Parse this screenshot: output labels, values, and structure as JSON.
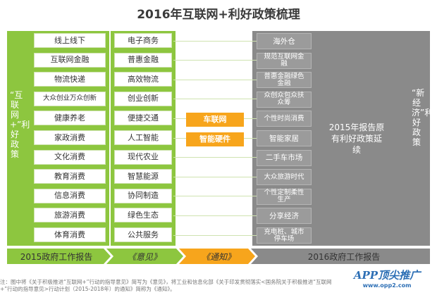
{
  "title": "2016年互联网+利好政策梳理",
  "left_label": "“互联网+”利好政策",
  "right_label": "“新经济”利好政策",
  "col1": [
    "线上线下",
    "互联网金融",
    "物流快递",
    "大众创业万众创新",
    "健康养老",
    "家政消费",
    "文化消费",
    "教育消费",
    "信息消费",
    "旅游消费",
    "体育消费"
  ],
  "col2": [
    "电子商务",
    "普惠金融",
    "高效物流",
    "创业创新",
    "便捷交通",
    "人工智能",
    "现代农业",
    "智慧能源",
    "协同制造",
    "绿色生态",
    "公共服务"
  ],
  "col3": [
    "车联网",
    "智能硬件"
  ],
  "col4": [
    "海外仓",
    "规范互联网金融",
    "普惠金融绿色金融",
    "众创众包众扶众筹",
    "个性时尚消费",
    "智能家居",
    "二手车市场",
    "大众旅游时代",
    "个性定制柔性生产",
    "分享经济",
    "充电桩、城市停车场"
  ],
  "col5_text": "2015年报告原有利好政策延续",
  "bottom": {
    "report_2015": "2015政府工作报告",
    "opinion": "《意见》",
    "notice": "《通知》",
    "report_2016": "2016政府工作报告"
  },
  "note": "注：图中将《关于积极推进“互联网+”行动的指导意见》简写为《意见》，将工业和信息化部《关于印发贯彻落实<国务院关于积极推进“互联网+”行动的指导意见>行动计划（2015-2018年）的通知》简称为《通知》。",
  "watermark": {
    "brand": "APP顶尖推广",
    "url": "www.opp2.com"
  },
  "colors": {
    "green": "#8dc63f",
    "orange": "#f7a51c",
    "gray": "#8a8a8a"
  }
}
